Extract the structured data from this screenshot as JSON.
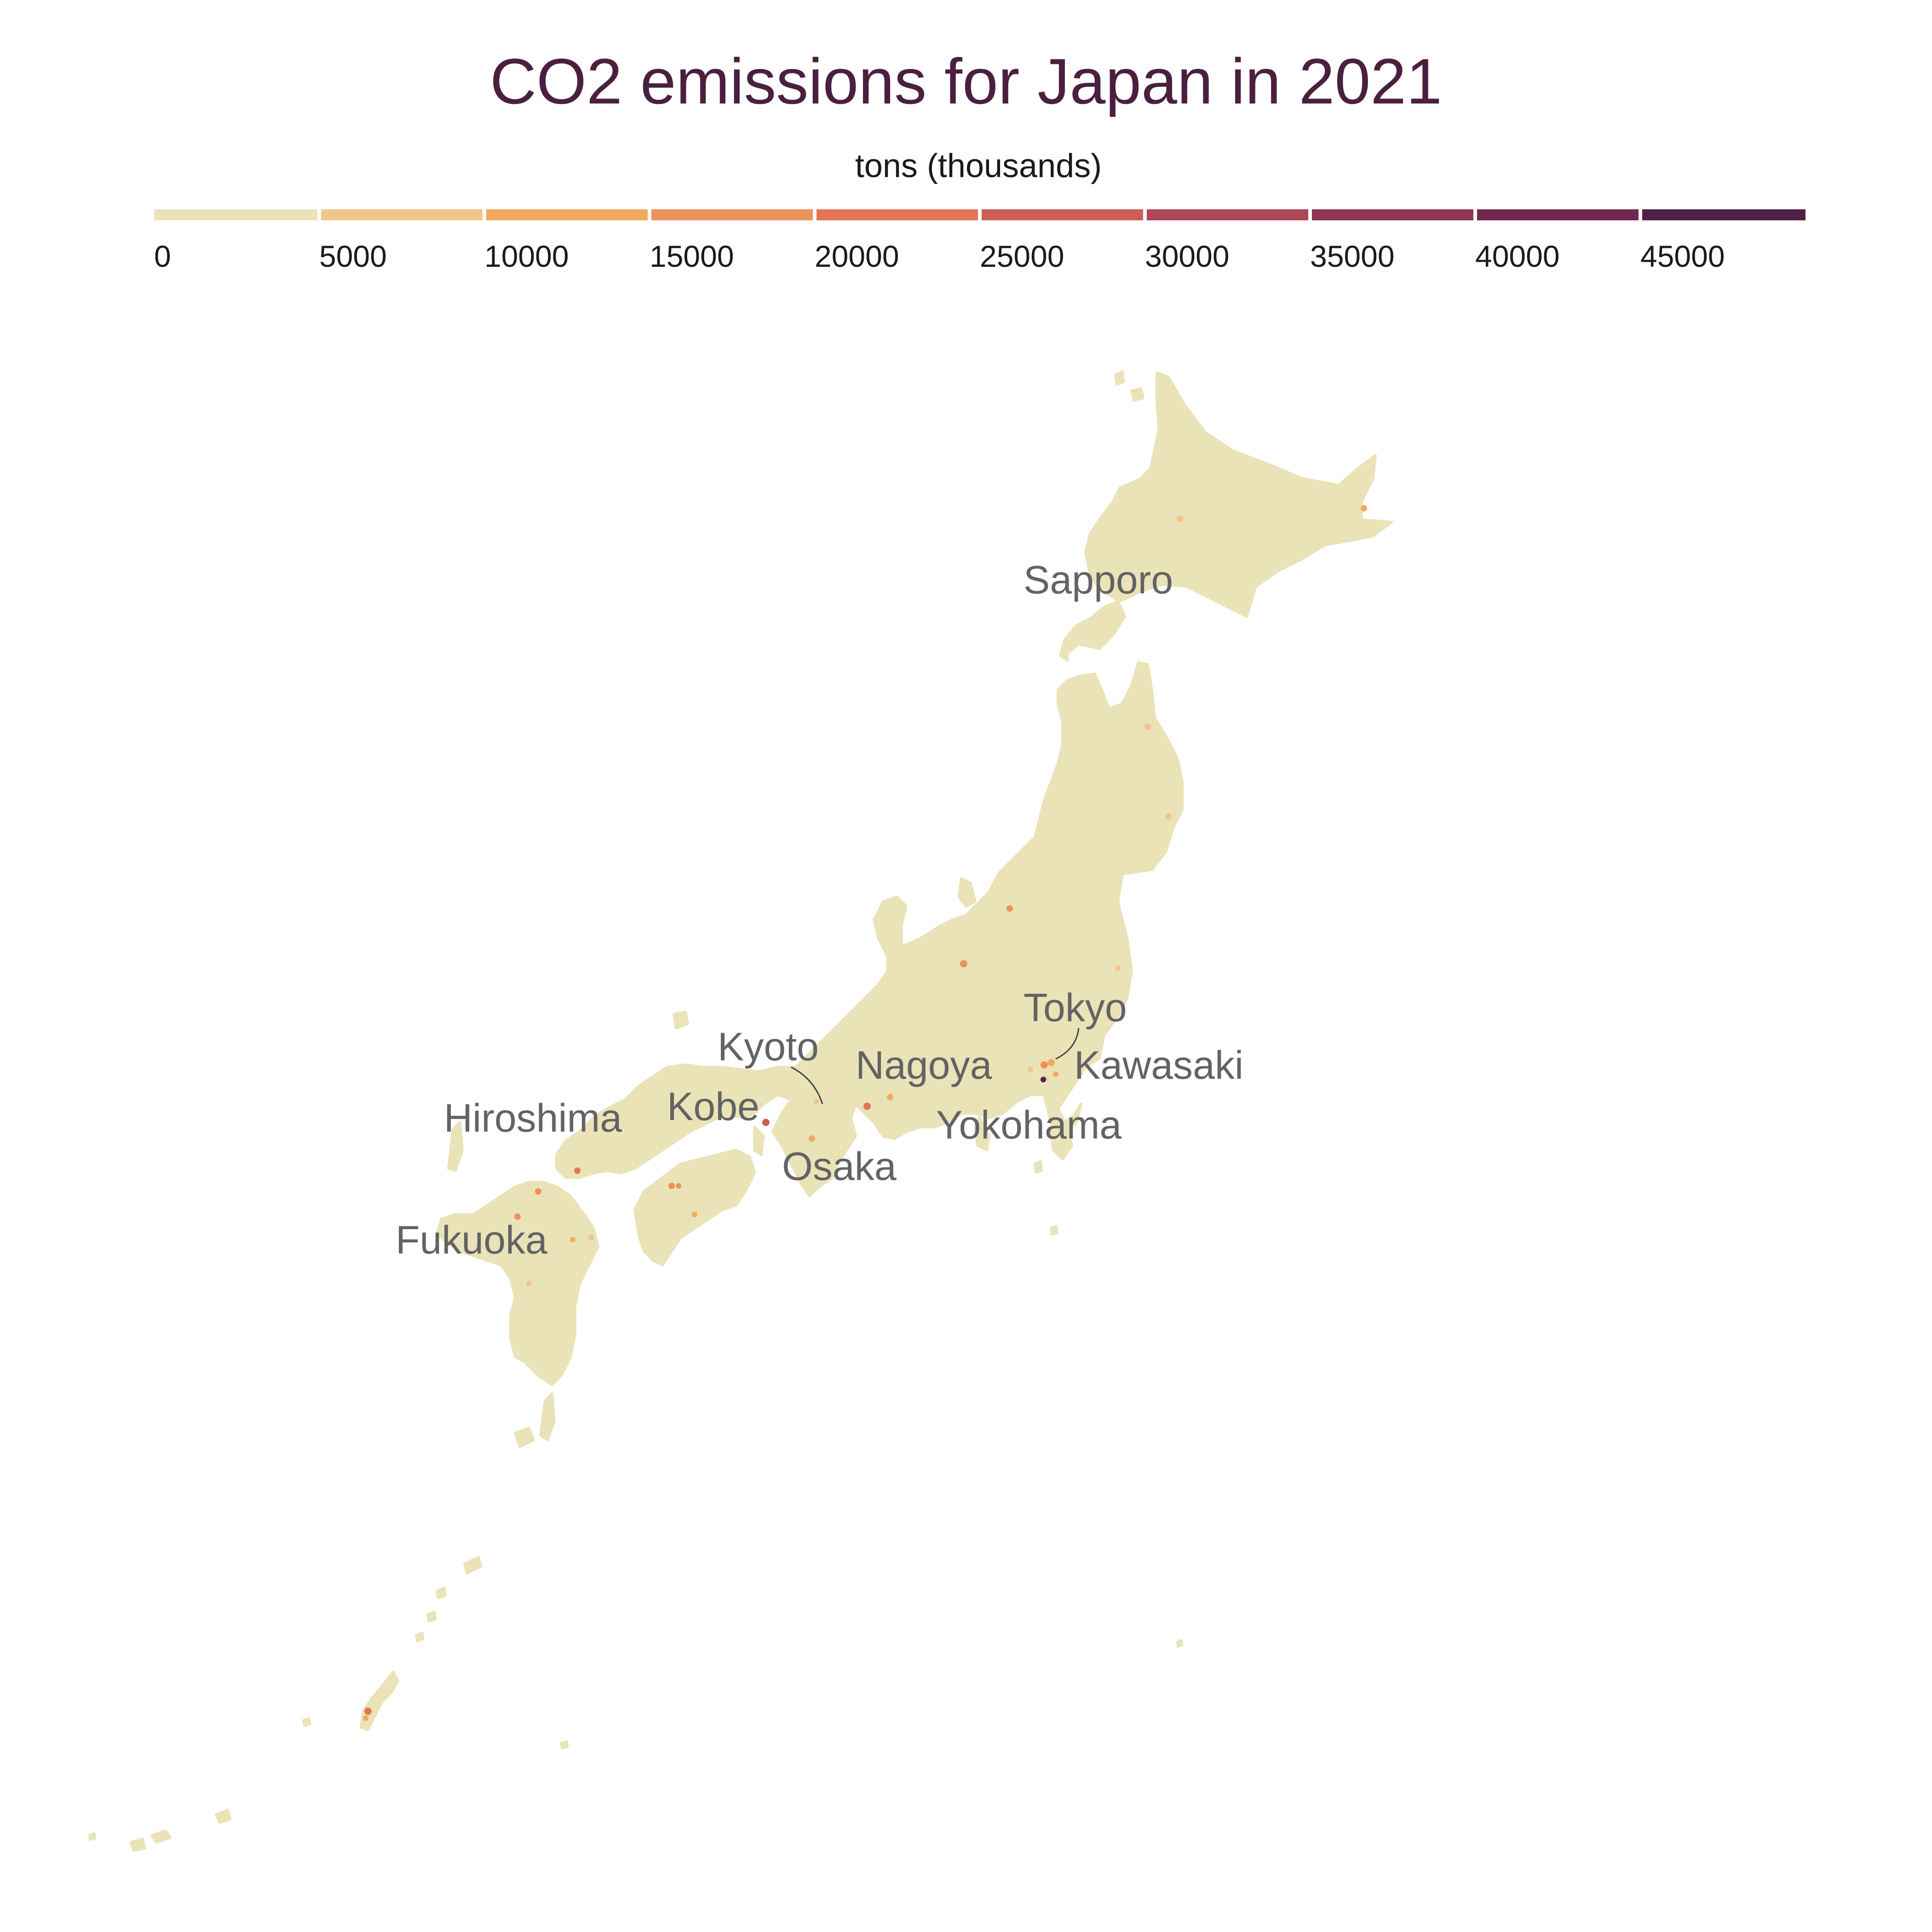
{
  "title": "CO2 emissions for Japan in 2021",
  "legend": {
    "title": "tons (thousands)",
    "ticks": [
      "0",
      "5000",
      "10000",
      "15000",
      "20000",
      "25000",
      "30000",
      "35000",
      "40000",
      "45000"
    ],
    "bins": [
      {
        "from": 0,
        "to": 5000,
        "color": "#EAE3B8"
      },
      {
        "from": 5000,
        "to": 10000,
        "color": "#F1C68B"
      },
      {
        "from": 10000,
        "to": 15000,
        "color": "#F3A960"
      },
      {
        "from": 15000,
        "to": 20000,
        "color": "#EC925A"
      },
      {
        "from": 20000,
        "to": 25000,
        "color": "#E37556"
      },
      {
        "from": 25000,
        "to": 30000,
        "color": "#CC5E57"
      },
      {
        "from": 30000,
        "to": 35000,
        "color": "#AE4758"
      },
      {
        "from": 35000,
        "to": 40000,
        "color": "#8E3652"
      },
      {
        "from": 40000,
        "to": 45000,
        "color": "#72284E"
      },
      {
        "from": 45000,
        "to": 50000,
        "color": "#512145"
      }
    ]
  },
  "colors": {
    "title": "#4A1F3F",
    "land": "#EAE3B8",
    "city_label": "#636363",
    "tick_label": "#1a1a1a"
  },
  "cities": [
    {
      "name": "Sapporo"
    },
    {
      "name": "Tokyo"
    },
    {
      "name": "Kyoto"
    },
    {
      "name": "Nagoya"
    },
    {
      "name": "Kawasaki"
    },
    {
      "name": "Kobe"
    },
    {
      "name": "Hiroshima"
    },
    {
      "name": "Yokohama"
    },
    {
      "name": "Osaka"
    },
    {
      "name": "Fukuoka"
    }
  ]
}
